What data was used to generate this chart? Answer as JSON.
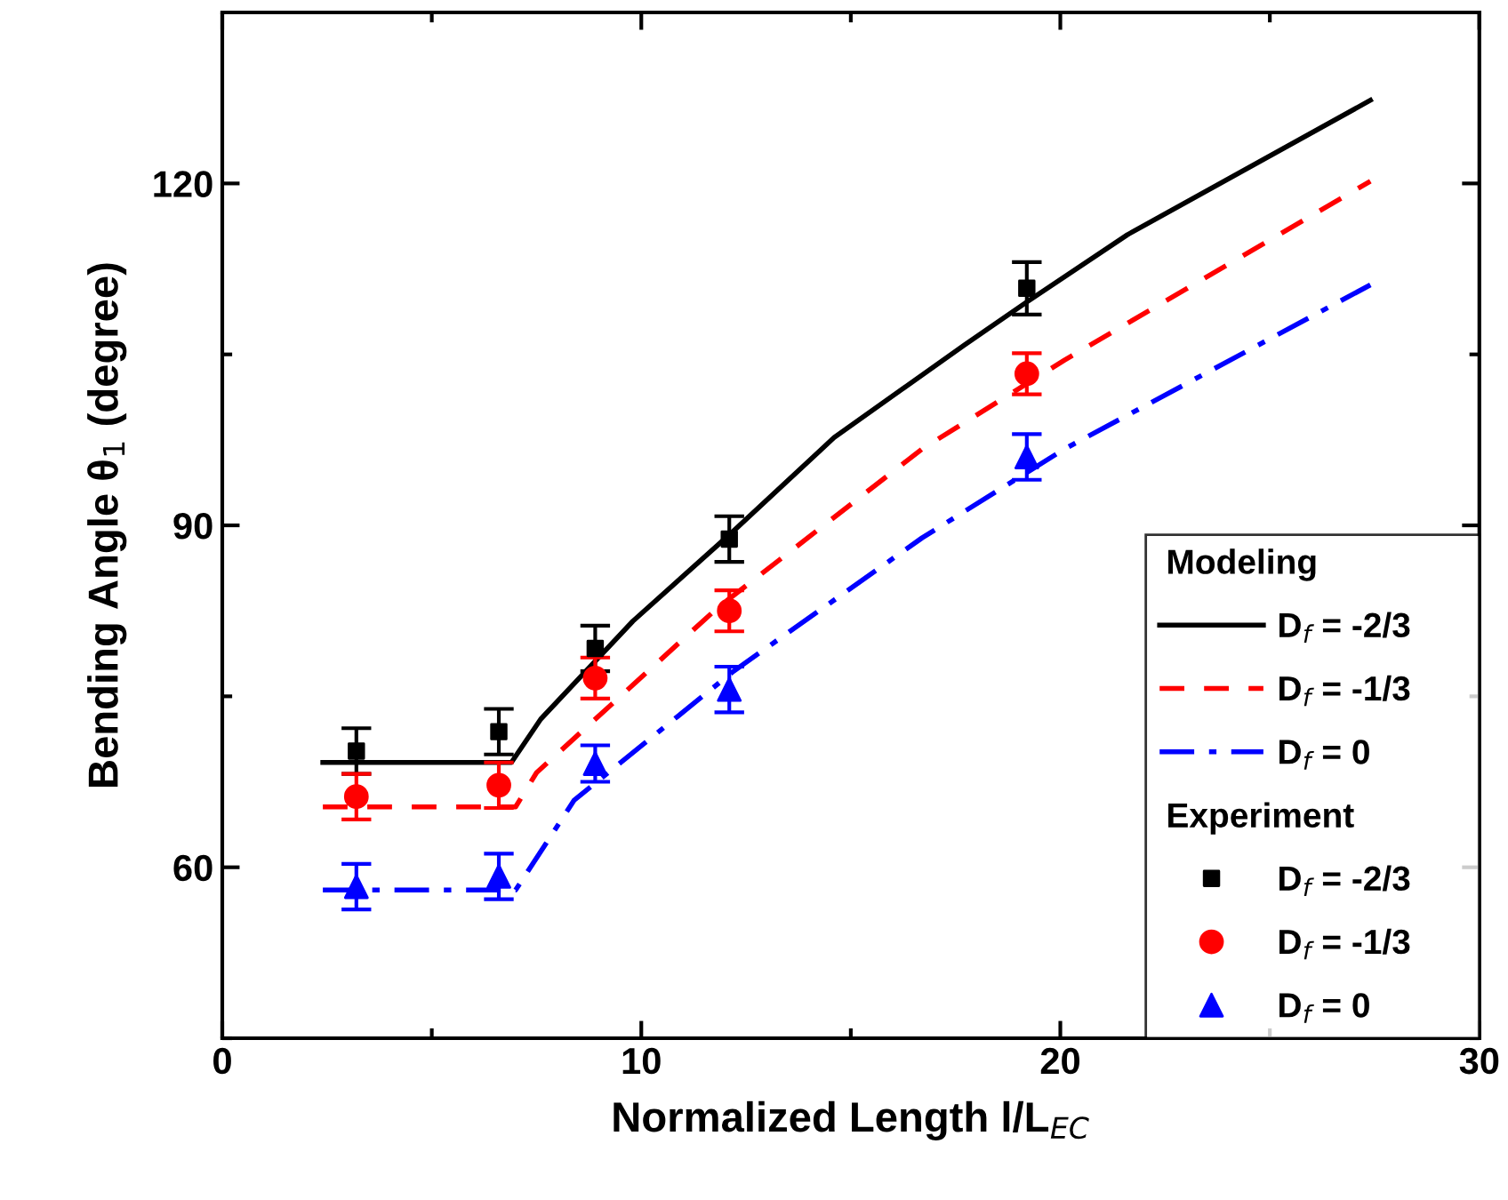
{
  "chart_data": {
    "type": "line",
    "xlabel": "Normalized Length l/L$_{EC}$",
    "ylabel": "Bending Angle θ$_{1}$ (degree)",
    "xlim": [
      0,
      30
    ],
    "xticks": [
      0,
      10,
      20,
      30
    ],
    "ylim": [
      45,
      135
    ],
    "yticks": [
      60,
      90,
      120
    ],
    "grid": false,
    "legend": "bottom right",
    "legend_title": [
      "Modeling",
      "Experiment"
    ],
    "series": [
      {
        "name": "D$_{f}$ = -2/3",
        "color": "#000000",
        "line_style": "solid",
        "marker": "none",
        "x": [
          2.4,
          6.9,
          7.6,
          9.8,
          12.2,
          14.6,
          17.7,
          19.2,
          21.6,
          27.4
        ],
        "values": [
          69.2,
          69.2,
          73.0,
          81.6,
          89.5,
          97.7,
          105.8,
          109.6,
          115.5,
          127.3
        ]
      },
      {
        "name": "D$_{f}$ = -1/3",
        "color": "#ff0000",
        "line_style": "dashed",
        "marker": "none",
        "x": [
          2.4,
          7.0,
          7.5,
          11.8,
          16.7,
          20.1,
          27.4
        ],
        "values": [
          65.3,
          65.3,
          68.3,
          82.7,
          96.7,
          104.5,
          120.2
        ]
      },
      {
        "name": "D$_{f}$ = 0",
        "color": "#0000ff",
        "line_style": "dashdot",
        "marker": "none",
        "x": [
          2.4,
          7.0,
          8.4,
          12.2,
          16.7,
          20.1,
          27.4
        ],
        "values": [
          58.0,
          58.0,
          65.9,
          77.2,
          88.9,
          96.7,
          111.1
        ]
      },
      {
        "name": "D$_{f}$ = -2/3",
        "type": "scatter",
        "color": "#000000",
        "marker": "square",
        "x": [
          3.2,
          6.6,
          8.9,
          12.1,
          19.2
        ],
        "values": [
          70.2,
          71.9,
          79.2,
          88.8,
          110.8
        ],
        "errors": [
          2,
          2,
          2,
          2,
          2.3
        ]
      },
      {
        "name": "D$_{f}$ = -1/3",
        "type": "scatter",
        "color": "#ff0000",
        "marker": "circle",
        "x": [
          3.2,
          6.6,
          8.9,
          12.1,
          19.2
        ],
        "values": [
          66.2,
          67.2,
          76.6,
          82.5,
          103.3
        ],
        "errors": [
          2,
          2,
          1.8,
          1.8,
          1.8
        ]
      },
      {
        "name": "D$_{f}$ = 0",
        "type": "scatter",
        "color": "#0000ff",
        "marker": "triangle",
        "x": [
          3.2,
          6.6,
          8.9,
          12.1,
          19.2
        ],
        "values": [
          58.3,
          59.2,
          69.1,
          75.6,
          96.0
        ],
        "errors": [
          2,
          2,
          1.6,
          2,
          2
        ]
      }
    ]
  }
}
